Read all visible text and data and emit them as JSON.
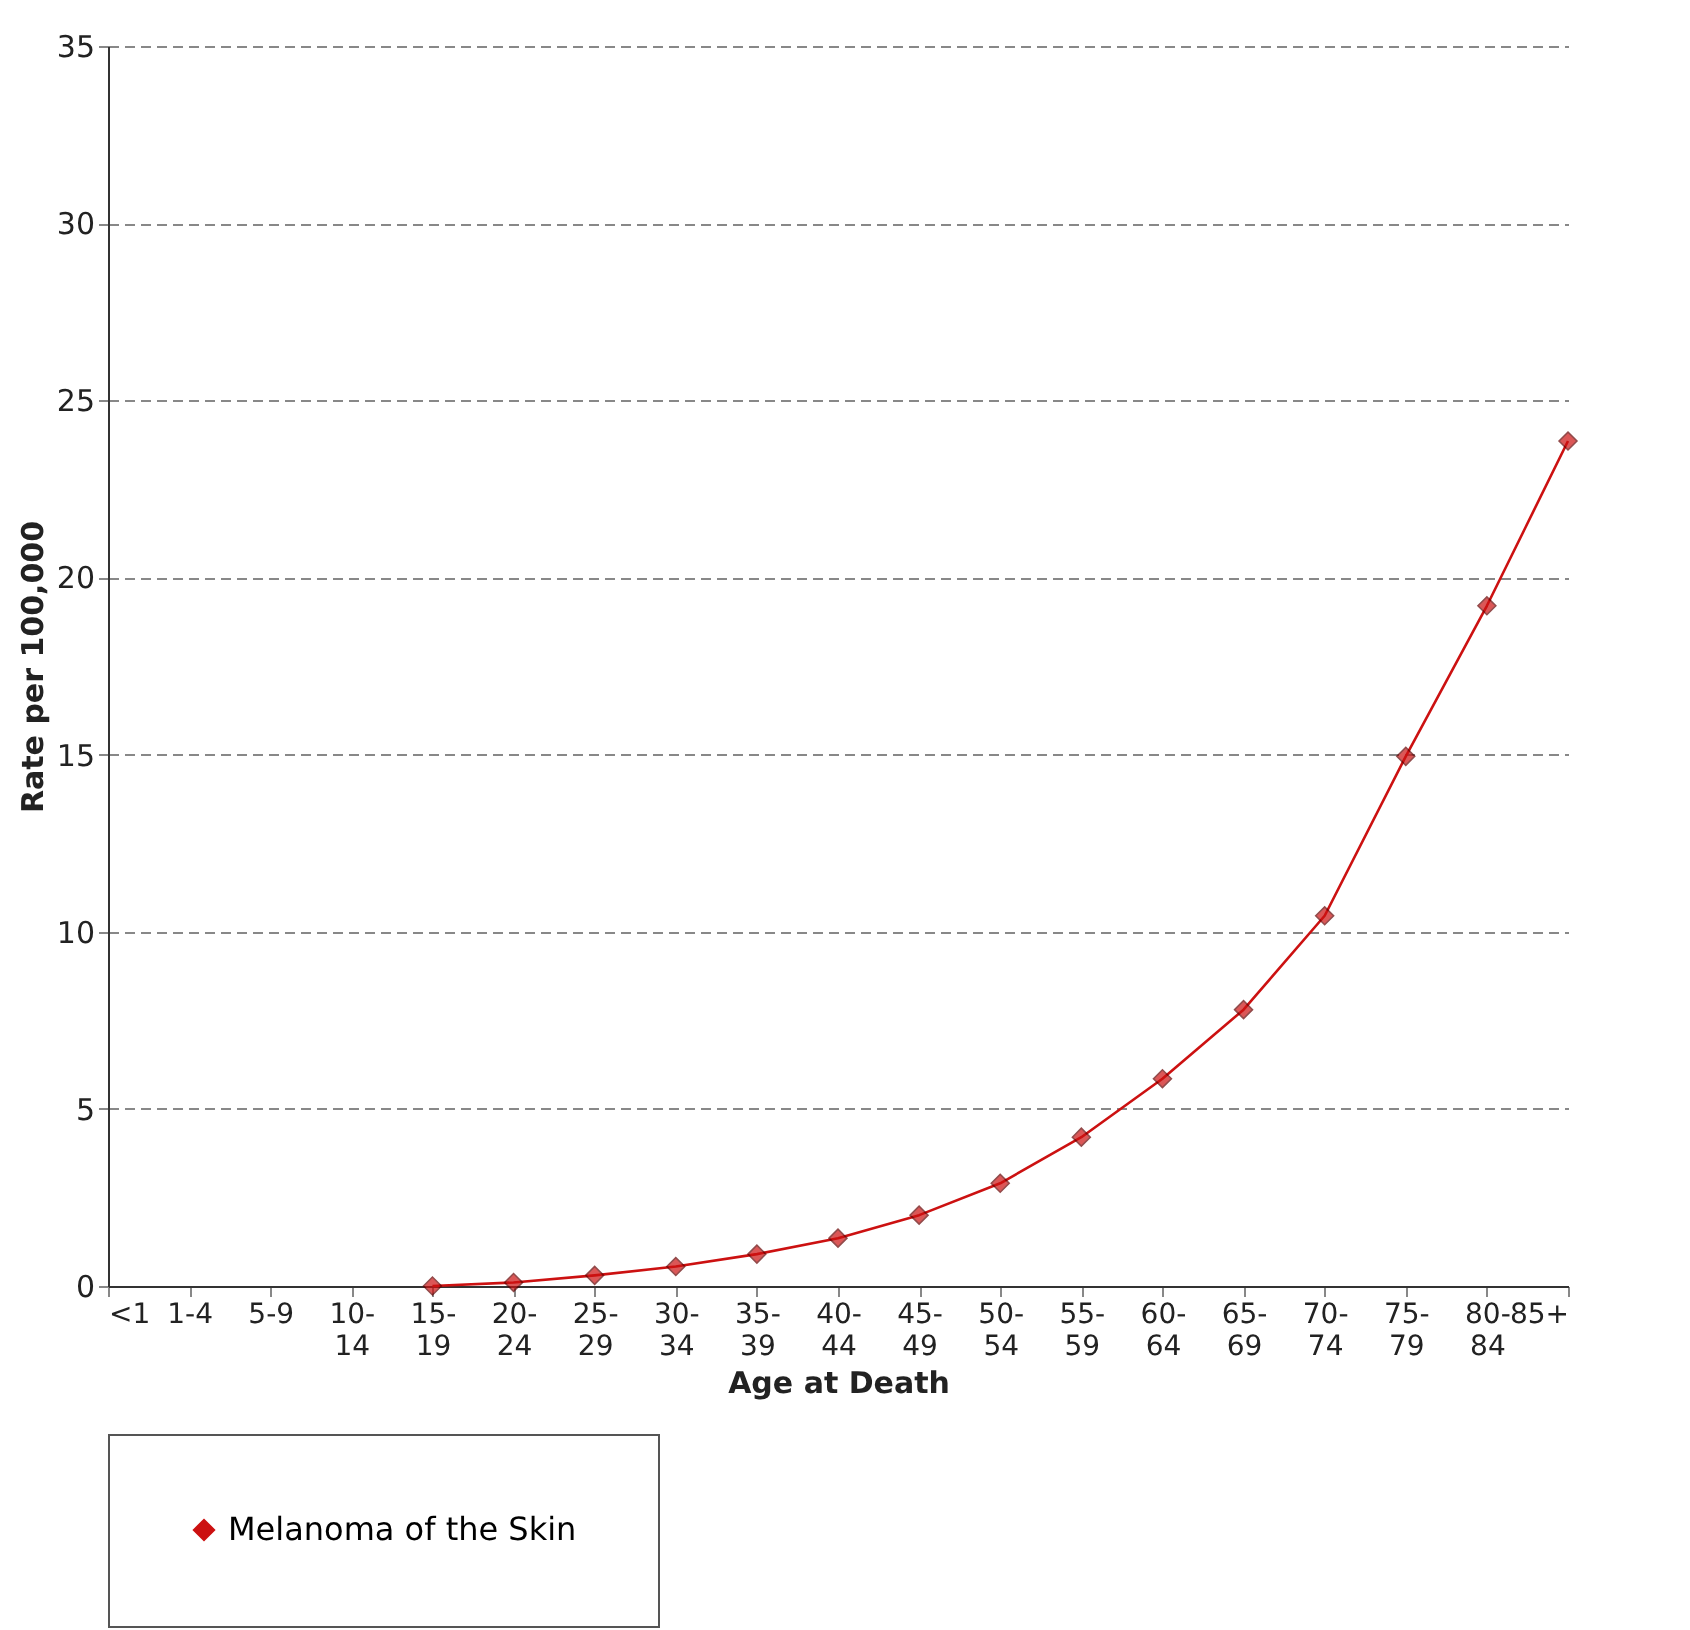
{
  "chart_data": {
    "type": "line",
    "xlabel": "Age at Death",
    "ylabel": "Rate per 100,000",
    "categories": [
      "<1",
      "1-4",
      "5-9",
      "10-14",
      "15-19",
      "20-24",
      "25-29",
      "30-34",
      "35-39",
      "40-44",
      "45-49",
      "50-54",
      "55-59",
      "60-64",
      "65-69",
      "70-74",
      "75-79",
      "80-84",
      "85+"
    ],
    "series": [
      {
        "name": "Melanoma of the Skin",
        "color": "#cc1111",
        "values": [
          null,
          null,
          null,
          null,
          0.0,
          0.1,
          0.3,
          0.55,
          0.9,
          1.35,
          2.0,
          2.9,
          4.2,
          5.85,
          7.8,
          10.45,
          14.95,
          19.2,
          23.85
        ]
      }
    ],
    "ylim": [
      0,
      35
    ],
    "yticks": [
      0,
      5,
      10,
      15,
      20,
      25,
      30,
      35
    ],
    "grid": "y",
    "legend": "bottom",
    "marker": "diamond",
    "line_style": "solid"
  }
}
